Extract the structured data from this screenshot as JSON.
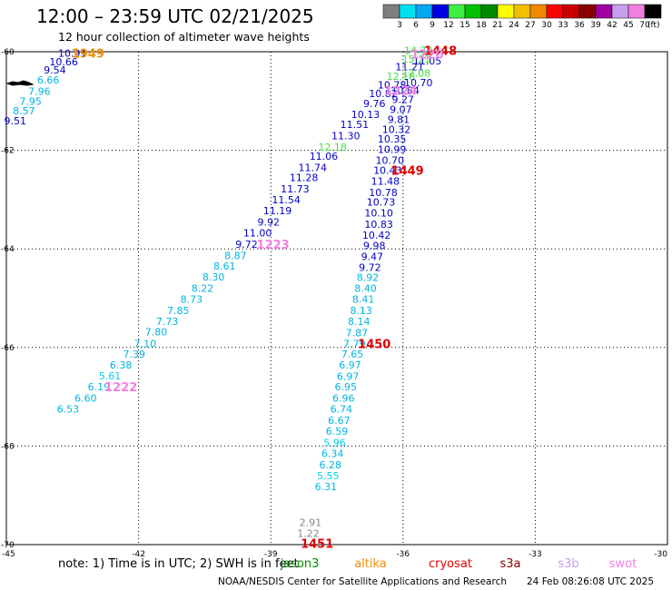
{
  "header": {
    "title": "12:00 – 23:59 UTC 02/21/2025",
    "subtitle": "12 hour collection of altimeter wave heights"
  },
  "colorbar": {
    "labels": [
      "3",
      "6",
      "9",
      "12",
      "15",
      "18",
      "21",
      "24",
      "27",
      "30",
      "33",
      "36",
      "39",
      "42",
      "45",
      "70"
    ],
    "unit": "(ft)",
    "colors": [
      "#7f7f7f",
      "#00e0f0",
      "#00a8f0",
      "#0000e0",
      "#40f040",
      "#00c000",
      "#008800",
      "#ffff00",
      "#f0c000",
      "#f08800",
      "#ff0000",
      "#c80000",
      "#880000",
      "#a000a0",
      "#c8a0f0",
      "#f080e0",
      "#000000"
    ]
  },
  "chart_data": {
    "type": "scatter",
    "xlim": [
      -45,
      -30
    ],
    "ylim": [
      -70,
      -60
    ],
    "x_ticks": [
      "-45",
      "-42",
      "-39",
      "-36",
      "-33",
      "-30"
    ],
    "y_ticks": [
      "-60",
      "-62",
      "-64",
      "-66",
      "-68",
      "-70"
    ],
    "grid": "dotted",
    "color_key": {
      "c": "#00b4e0",
      "d": "#0000c8",
      "b": "#00d0e8",
      "g": "#40e040",
      "h": "#40e040",
      "m": "#888888",
      "p": "#f080e0",
      "r": "#e00000",
      "o": "#f08c00"
    },
    "points": [
      {
        "label": "10.91",
        "x": -43.5,
        "y": -60.03,
        "c": "d"
      },
      {
        "label": "10.66",
        "x": -43.7,
        "y": -60.2,
        "c": "d"
      },
      {
        "label": "9.54",
        "x": -43.9,
        "y": -60.37,
        "c": "d"
      },
      {
        "label": "6.66",
        "x": -44.05,
        "y": -60.57,
        "c": "c"
      },
      {
        "label": "7.96",
        "x": -44.25,
        "y": -60.8,
        "c": "c"
      },
      {
        "label": "7.95",
        "x": -44.45,
        "y": -61.0,
        "c": "c"
      },
      {
        "label": "8.57",
        "x": -44.6,
        "y": -61.2,
        "c": "c"
      },
      {
        "label": "9.51",
        "x": -44.8,
        "y": -61.4,
        "c": "d"
      },
      {
        "label": "14.72",
        "x": -35.65,
        "y": -59.97,
        "c": "g"
      },
      {
        "label": "15.21",
        "x": -35.7,
        "y": -60.15,
        "c": "g"
      },
      {
        "label": "11.05",
        "x": -35.45,
        "y": -60.18,
        "c": "d"
      },
      {
        "label": "11.21",
        "x": -35.85,
        "y": -60.3,
        "c": "d"
      },
      {
        "label": "12.08",
        "x": -35.7,
        "y": -60.43,
        "c": "g"
      },
      {
        "label": "12.18",
        "x": -36.05,
        "y": -60.5,
        "c": "g"
      },
      {
        "label": "10.70",
        "x": -35.65,
        "y": -60.63,
        "c": "d"
      },
      {
        "label": "10.78",
        "x": -36.25,
        "y": -60.67,
        "c": "d"
      },
      {
        "label": "10.84",
        "x": -35.95,
        "y": -60.78,
        "c": "d"
      },
      {
        "label": "10.82",
        "x": -36.45,
        "y": -60.85,
        "c": "d"
      },
      {
        "label": "9.27",
        "x": -36.0,
        "y": -60.97,
        "c": "d"
      },
      {
        "label": "9.76",
        "x": -36.65,
        "y": -61.05,
        "c": "d"
      },
      {
        "label": "9.07",
        "x": -36.05,
        "y": -61.17,
        "c": "d"
      },
      {
        "label": "10.13",
        "x": -36.85,
        "y": -61.27,
        "c": "d"
      },
      {
        "label": "9.81",
        "x": -36.1,
        "y": -61.37,
        "c": "d"
      },
      {
        "label": "11.51",
        "x": -37.1,
        "y": -61.47,
        "c": "d"
      },
      {
        "label": "10.32",
        "x": -36.15,
        "y": -61.57,
        "c": "d"
      },
      {
        "label": "11.30",
        "x": -37.3,
        "y": -61.7,
        "c": "d"
      },
      {
        "label": "10.35",
        "x": -36.25,
        "y": -61.77,
        "c": "d"
      },
      {
        "label": "12.18",
        "x": -37.6,
        "y": -61.93,
        "c": "g"
      },
      {
        "label": "10.99",
        "x": -36.25,
        "y": -61.98,
        "c": "d"
      },
      {
        "label": "11.06",
        "x": -37.8,
        "y": -62.12,
        "c": "d"
      },
      {
        "label": "10.70",
        "x": -36.3,
        "y": -62.2,
        "c": "d"
      },
      {
        "label": "11.74",
        "x": -38.05,
        "y": -62.35,
        "c": "d"
      },
      {
        "label": "10.43",
        "x": -36.35,
        "y": -62.4,
        "c": "d"
      },
      {
        "label": "11.28",
        "x": -38.25,
        "y": -62.55,
        "c": "d"
      },
      {
        "label": "11.48",
        "x": -36.4,
        "y": -62.62,
        "c": "d"
      },
      {
        "label": "11.73",
        "x": -38.45,
        "y": -62.78,
        "c": "d"
      },
      {
        "label": "10.78",
        "x": -36.45,
        "y": -62.85,
        "c": "d"
      },
      {
        "label": "11.54",
        "x": -38.65,
        "y": -63.0,
        "c": "d"
      },
      {
        "label": "10.73",
        "x": -36.5,
        "y": -63.05,
        "c": "d"
      },
      {
        "label": "11.19",
        "x": -38.85,
        "y": -63.22,
        "c": "d"
      },
      {
        "label": "10.10",
        "x": -36.55,
        "y": -63.27,
        "c": "d"
      },
      {
        "label": "9.92",
        "x": -39.05,
        "y": -63.45,
        "c": "d"
      },
      {
        "label": "10.83",
        "x": -36.55,
        "y": -63.5,
        "c": "d"
      },
      {
        "label": "11.00",
        "x": -39.3,
        "y": -63.67,
        "c": "d"
      },
      {
        "label": "10.42",
        "x": -36.6,
        "y": -63.72,
        "c": "d"
      },
      {
        "label": "9.72",
        "x": -39.55,
        "y": -63.9,
        "c": "d"
      },
      {
        "label": "9.98",
        "x": -36.65,
        "y": -63.93,
        "c": "d"
      },
      {
        "label": "8.87",
        "x": -39.8,
        "y": -64.13,
        "c": "c"
      },
      {
        "label": "9.47",
        "x": -36.7,
        "y": -64.15,
        "c": "d"
      },
      {
        "label": "8.61",
        "x": -40.05,
        "y": -64.35,
        "c": "c"
      },
      {
        "label": "9.72",
        "x": -36.75,
        "y": -64.37,
        "c": "d"
      },
      {
        "label": "8.30",
        "x": -40.3,
        "y": -64.57,
        "c": "c"
      },
      {
        "label": "8.92",
        "x": -36.8,
        "y": -64.58,
        "c": "c"
      },
      {
        "label": "8.22",
        "x": -40.55,
        "y": -64.8,
        "c": "c"
      },
      {
        "label": "8.40",
        "x": -36.85,
        "y": -64.8,
        "c": "c"
      },
      {
        "label": "8.73",
        "x": -40.8,
        "y": -65.02,
        "c": "c"
      },
      {
        "label": "8.41",
        "x": -36.9,
        "y": -65.02,
        "c": "c"
      },
      {
        "label": "7.85",
        "x": -41.1,
        "y": -65.25,
        "c": "c"
      },
      {
        "label": "8.13",
        "x": -36.95,
        "y": -65.25,
        "c": "c"
      },
      {
        "label": "7.73",
        "x": -41.35,
        "y": -65.47,
        "c": "c"
      },
      {
        "label": "8.14",
        "x": -37.0,
        "y": -65.47,
        "c": "c"
      },
      {
        "label": "7.80",
        "x": -41.6,
        "y": -65.68,
        "c": "c"
      },
      {
        "label": "7.87",
        "x": -37.05,
        "y": -65.7,
        "c": "c"
      },
      {
        "label": "7.10",
        "x": -41.85,
        "y": -65.92,
        "c": "c"
      },
      {
        "label": "7.79",
        "x": -37.1,
        "y": -65.92,
        "c": "c"
      },
      {
        "label": "7.39",
        "x": -42.1,
        "y": -66.13,
        "c": "c"
      },
      {
        "label": "7.65",
        "x": -37.15,
        "y": -66.13,
        "c": "c"
      },
      {
        "label": "6.38",
        "x": -42.4,
        "y": -66.35,
        "c": "c"
      },
      {
        "label": "6.97",
        "x": -37.2,
        "y": -66.35,
        "c": "c"
      },
      {
        "label": "5.61",
        "x": -42.65,
        "y": -66.57,
        "c": "b"
      },
      {
        "label": "6.97",
        "x": -37.25,
        "y": -66.58,
        "c": "c"
      },
      {
        "label": "6.19",
        "x": -42.9,
        "y": -66.8,
        "c": "c"
      },
      {
        "label": "6.95",
        "x": -37.3,
        "y": -66.8,
        "c": "c"
      },
      {
        "label": "6.60",
        "x": -43.2,
        "y": -67.03,
        "c": "c"
      },
      {
        "label": "6.96",
        "x": -37.35,
        "y": -67.03,
        "c": "c"
      },
      {
        "label": "6.53",
        "x": -43.6,
        "y": -67.25,
        "c": "c"
      },
      {
        "label": "6.74",
        "x": -37.4,
        "y": -67.25,
        "c": "c"
      },
      {
        "label": "6.67",
        "x": -37.45,
        "y": -67.48,
        "c": "c"
      },
      {
        "label": "6.59",
        "x": -37.5,
        "y": -67.7,
        "c": "c"
      },
      {
        "label": "5.96",
        "x": -37.55,
        "y": -67.93,
        "c": "b"
      },
      {
        "label": "6.34",
        "x": -37.6,
        "y": -68.15,
        "c": "c"
      },
      {
        "label": "6.28",
        "x": -37.65,
        "y": -68.38,
        "c": "c"
      },
      {
        "label": "5.55",
        "x": -37.7,
        "y": -68.6,
        "c": "b"
      },
      {
        "label": "6.31",
        "x": -37.75,
        "y": -68.82,
        "c": "c"
      },
      {
        "label": "2.91",
        "x": -38.1,
        "y": -69.55,
        "c": "m"
      },
      {
        "label": "1.22",
        "x": -38.15,
        "y": -69.77,
        "c": "m"
      }
    ],
    "time_labels": [
      {
        "label": "1949",
        "x": -43.15,
        "y": -60.03,
        "c": "o"
      },
      {
        "label": "1448",
        "x": -35.15,
        "y": -59.97,
        "c": "r"
      },
      {
        "label": "1220",
        "x": -35.45,
        "y": -60.05,
        "c": "p"
      },
      {
        "label": "1224",
        "x": -36.05,
        "y": -60.78,
        "c": "p"
      },
      {
        "label": "1449",
        "x": -35.9,
        "y": -62.4,
        "c": "r"
      },
      {
        "label": "1223",
        "x": -38.95,
        "y": -63.9,
        "c": "p"
      },
      {
        "label": "1450",
        "x": -36.65,
        "y": -65.92,
        "c": "r"
      },
      {
        "label": "1222",
        "x": -42.4,
        "y": -66.8,
        "c": "p"
      },
      {
        "label": "1451",
        "x": -37.95,
        "y": -69.97,
        "c": "r"
      }
    ]
  },
  "footer": {
    "note": "note:  1) Time is in UTC; 2) SWH is in feet",
    "satellites": [
      {
        "name": "jason3",
        "color": "#008800"
      },
      {
        "name": "altika",
        "color": "#f08c00"
      },
      {
        "name": "cryosat",
        "color": "#e00000"
      },
      {
        "name": "s3a",
        "color": "#880000"
      },
      {
        "name": "s3b",
        "color": "#c8a0f0"
      },
      {
        "name": "swot",
        "color": "#f080e0"
      }
    ],
    "credit": "NOAA/NESDIS Center for Satellite Applications and Research",
    "timestamp": "24 Feb 08:26:08 UTC 2025"
  }
}
